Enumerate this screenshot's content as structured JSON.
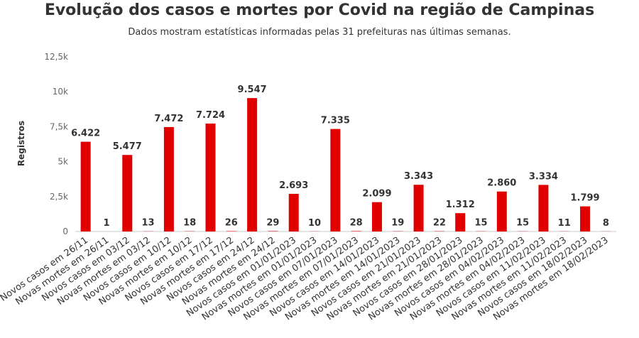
{
  "chart_data": {
    "type": "bar",
    "title": "Evolução dos casos e mortes por Covid na região de Campinas",
    "subtitle": "Dados mostram estatísticas informadas pelas 31 prefeituras nas últimas semanas.",
    "ylabel": "Registros",
    "xlabel": "",
    "ylim": [
      0,
      12500
    ],
    "yticks": [
      0,
      2500,
      5000,
      7500,
      10000,
      12500
    ],
    "ytick_labels": [
      "0",
      "2,5k",
      "5k",
      "7,5k",
      "10k",
      "12,5k"
    ],
    "grid": false,
    "legend": "none",
    "bar_color": "#e00000",
    "categories": [
      "Novos casos em 26/11",
      "Novas mortes em 26/11",
      "Novos casos em 03/12",
      "Novas mortes em 03/12",
      "Novos casos em 10/12",
      "Novas mortes em 10/12",
      "Novos casos em 17/12",
      "Novas mortes em 17/12",
      "Novos casos em 24/12",
      "Novas mortes em 24/12",
      "Novos casos em 01/01/2023",
      "Novas mortes em 01/01/2023",
      "Novos casos em 07/01/2023",
      "Novas mortes em 07/01/2023",
      "Novos casos em 14/01/2023",
      "Novas mortes em 14/01/2023",
      "Novos casos em 21/01/2023",
      "Novas mortes em 21/01/2023",
      "Novos casos em 28/01/2023",
      "Novas mortes em 28/01/2023",
      "Novos casos em 04/02/2023",
      "Novas mortes em 04/02/2023",
      "Novos casos em 11/02/2023",
      "Novas mortes em 11/02/2023",
      "Novos casos em 18/02/2023",
      "Novas mortes em 18/02/2023"
    ],
    "values": [
      6422,
      1,
      5477,
      13,
      7472,
      18,
      7724,
      26,
      9547,
      29,
      2693,
      10,
      7335,
      28,
      2099,
      19,
      3343,
      22,
      1312,
      15,
      2860,
      15,
      3334,
      11,
      1799,
      8
    ],
    "value_labels": [
      "6.422",
      "1",
      "5.477",
      "13",
      "7.472",
      "18",
      "7.724",
      "26",
      "9.547",
      "29",
      "2.693",
      "10",
      "7.335",
      "28",
      "2.099",
      "19",
      "3.343",
      "22",
      "1.312",
      "15",
      "2.860",
      "15",
      "3.334",
      "11",
      "1.799",
      "8"
    ]
  }
}
